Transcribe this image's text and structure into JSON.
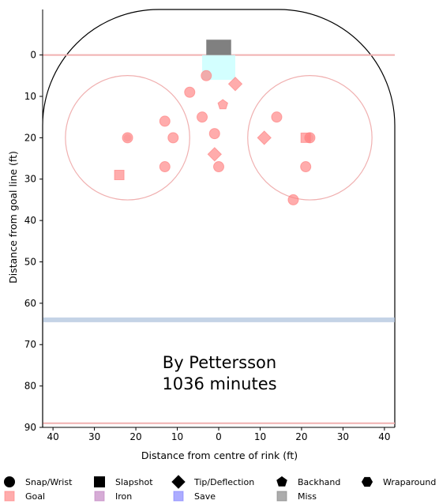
{
  "chart_data": {
    "type": "scatter",
    "xlabel": "Distance from centre of rink (ft)",
    "ylabel": "Distance from goal line (ft)",
    "xlim": [
      42.5,
      -42.5
    ],
    "ylim": [
      90,
      -11
    ],
    "x_ticks": [
      40,
      30,
      20,
      10,
      0,
      10,
      20,
      30,
      40
    ],
    "y_ticks": [
      0,
      10,
      20,
      30,
      40,
      50,
      60,
      70,
      80,
      90
    ],
    "annotation": [
      "By Pettersson",
      "1036 minutes"
    ],
    "colors": {
      "goal": "#ff8080",
      "rink_line": "#f0b0b0",
      "blue_line": "#b0c4de",
      "net": "#808080",
      "crease": "#c8ffff"
    },
    "points": [
      {
        "x": 3,
        "y": 5,
        "shot": "Snap/Wrist",
        "result": "Goal"
      },
      {
        "x": -4,
        "y": 7,
        "shot": "Tip/Deflection",
        "result": "Goal"
      },
      {
        "x": 7,
        "y": 9,
        "shot": "Snap/Wrist",
        "result": "Goal"
      },
      {
        "x": -1,
        "y": 12,
        "shot": "Backhand",
        "result": "Goal"
      },
      {
        "x": 4,
        "y": 15,
        "shot": "Snap/Wrist",
        "result": "Goal"
      },
      {
        "x": 13,
        "y": 16,
        "shot": "Snap/Wrist",
        "result": "Goal"
      },
      {
        "x": 1,
        "y": 19,
        "shot": "Snap/Wrist",
        "result": "Goal"
      },
      {
        "x": 11,
        "y": 20,
        "shot": "Snap/Wrist",
        "result": "Goal"
      },
      {
        "x": 22,
        "y": 20,
        "shot": "Snap/Wrist",
        "result": "Goal"
      },
      {
        "x": 1,
        "y": 24,
        "shot": "Tip/Deflection",
        "result": "Goal"
      },
      {
        "x": 13,
        "y": 27,
        "shot": "Snap/Wrist",
        "result": "Goal"
      },
      {
        "x": 0,
        "y": 27,
        "shot": "Snap/Wrist",
        "result": "Goal"
      },
      {
        "x": 24,
        "y": 29,
        "shot": "Slapshot",
        "result": "Goal"
      },
      {
        "x": -14,
        "y": 15,
        "shot": "Snap/Wrist",
        "result": "Goal"
      },
      {
        "x": -11,
        "y": 20,
        "shot": "Tip/Deflection",
        "result": "Goal"
      },
      {
        "x": -21,
        "y": 20,
        "shot": "Slapshot",
        "result": "Goal"
      },
      {
        "x": -22,
        "y": 20,
        "shot": "Snap/Wrist",
        "result": "Goal"
      },
      {
        "x": -21,
        "y": 27,
        "shot": "Snap/Wrist",
        "result": "Goal"
      },
      {
        "x": -18,
        "y": 35,
        "shot": "Snap/Wrist",
        "result": "Goal"
      }
    ],
    "legend_shots": [
      "Snap/Wrist",
      "Slapshot",
      "Tip/Deflection",
      "Backhand",
      "Wraparound"
    ],
    "legend_results": [
      {
        "label": "Goal",
        "color": "#ff8080"
      },
      {
        "label": "Iron",
        "color": "#c080c0"
      },
      {
        "label": "Save",
        "color": "#8080ff"
      },
      {
        "label": "Miss",
        "color": "#808080"
      }
    ],
    "legend_placement": "bottom"
  }
}
